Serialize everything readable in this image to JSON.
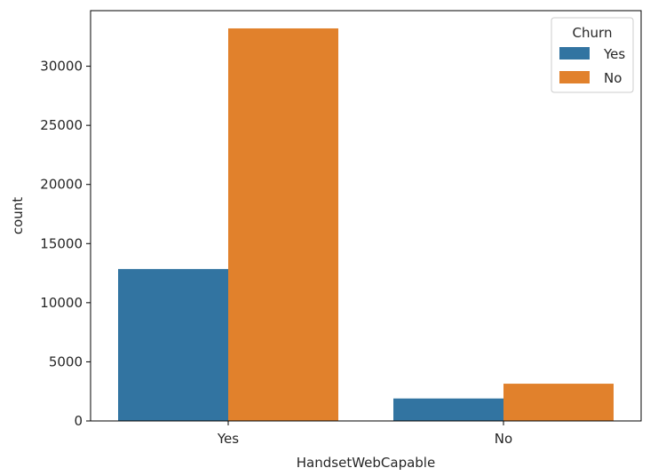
{
  "chart_data": {
    "type": "bar",
    "title": "",
    "xlabel": "HandsetWebCapable",
    "ylabel": "count",
    "categories": [
      "Yes",
      "No"
    ],
    "series": [
      {
        "name": "Yes",
        "color": "#3274a1",
        "values": [
          12850,
          1900
        ]
      },
      {
        "name": "No",
        "color": "#e1812c",
        "values": [
          33200,
          3150
        ]
      }
    ],
    "ylim": [
      0,
      34700
    ],
    "yticks": [
      0,
      5000,
      10000,
      15000,
      20000,
      25000,
      30000
    ],
    "grid": false,
    "legend": {
      "title": "Churn",
      "placement": "top-right"
    }
  }
}
